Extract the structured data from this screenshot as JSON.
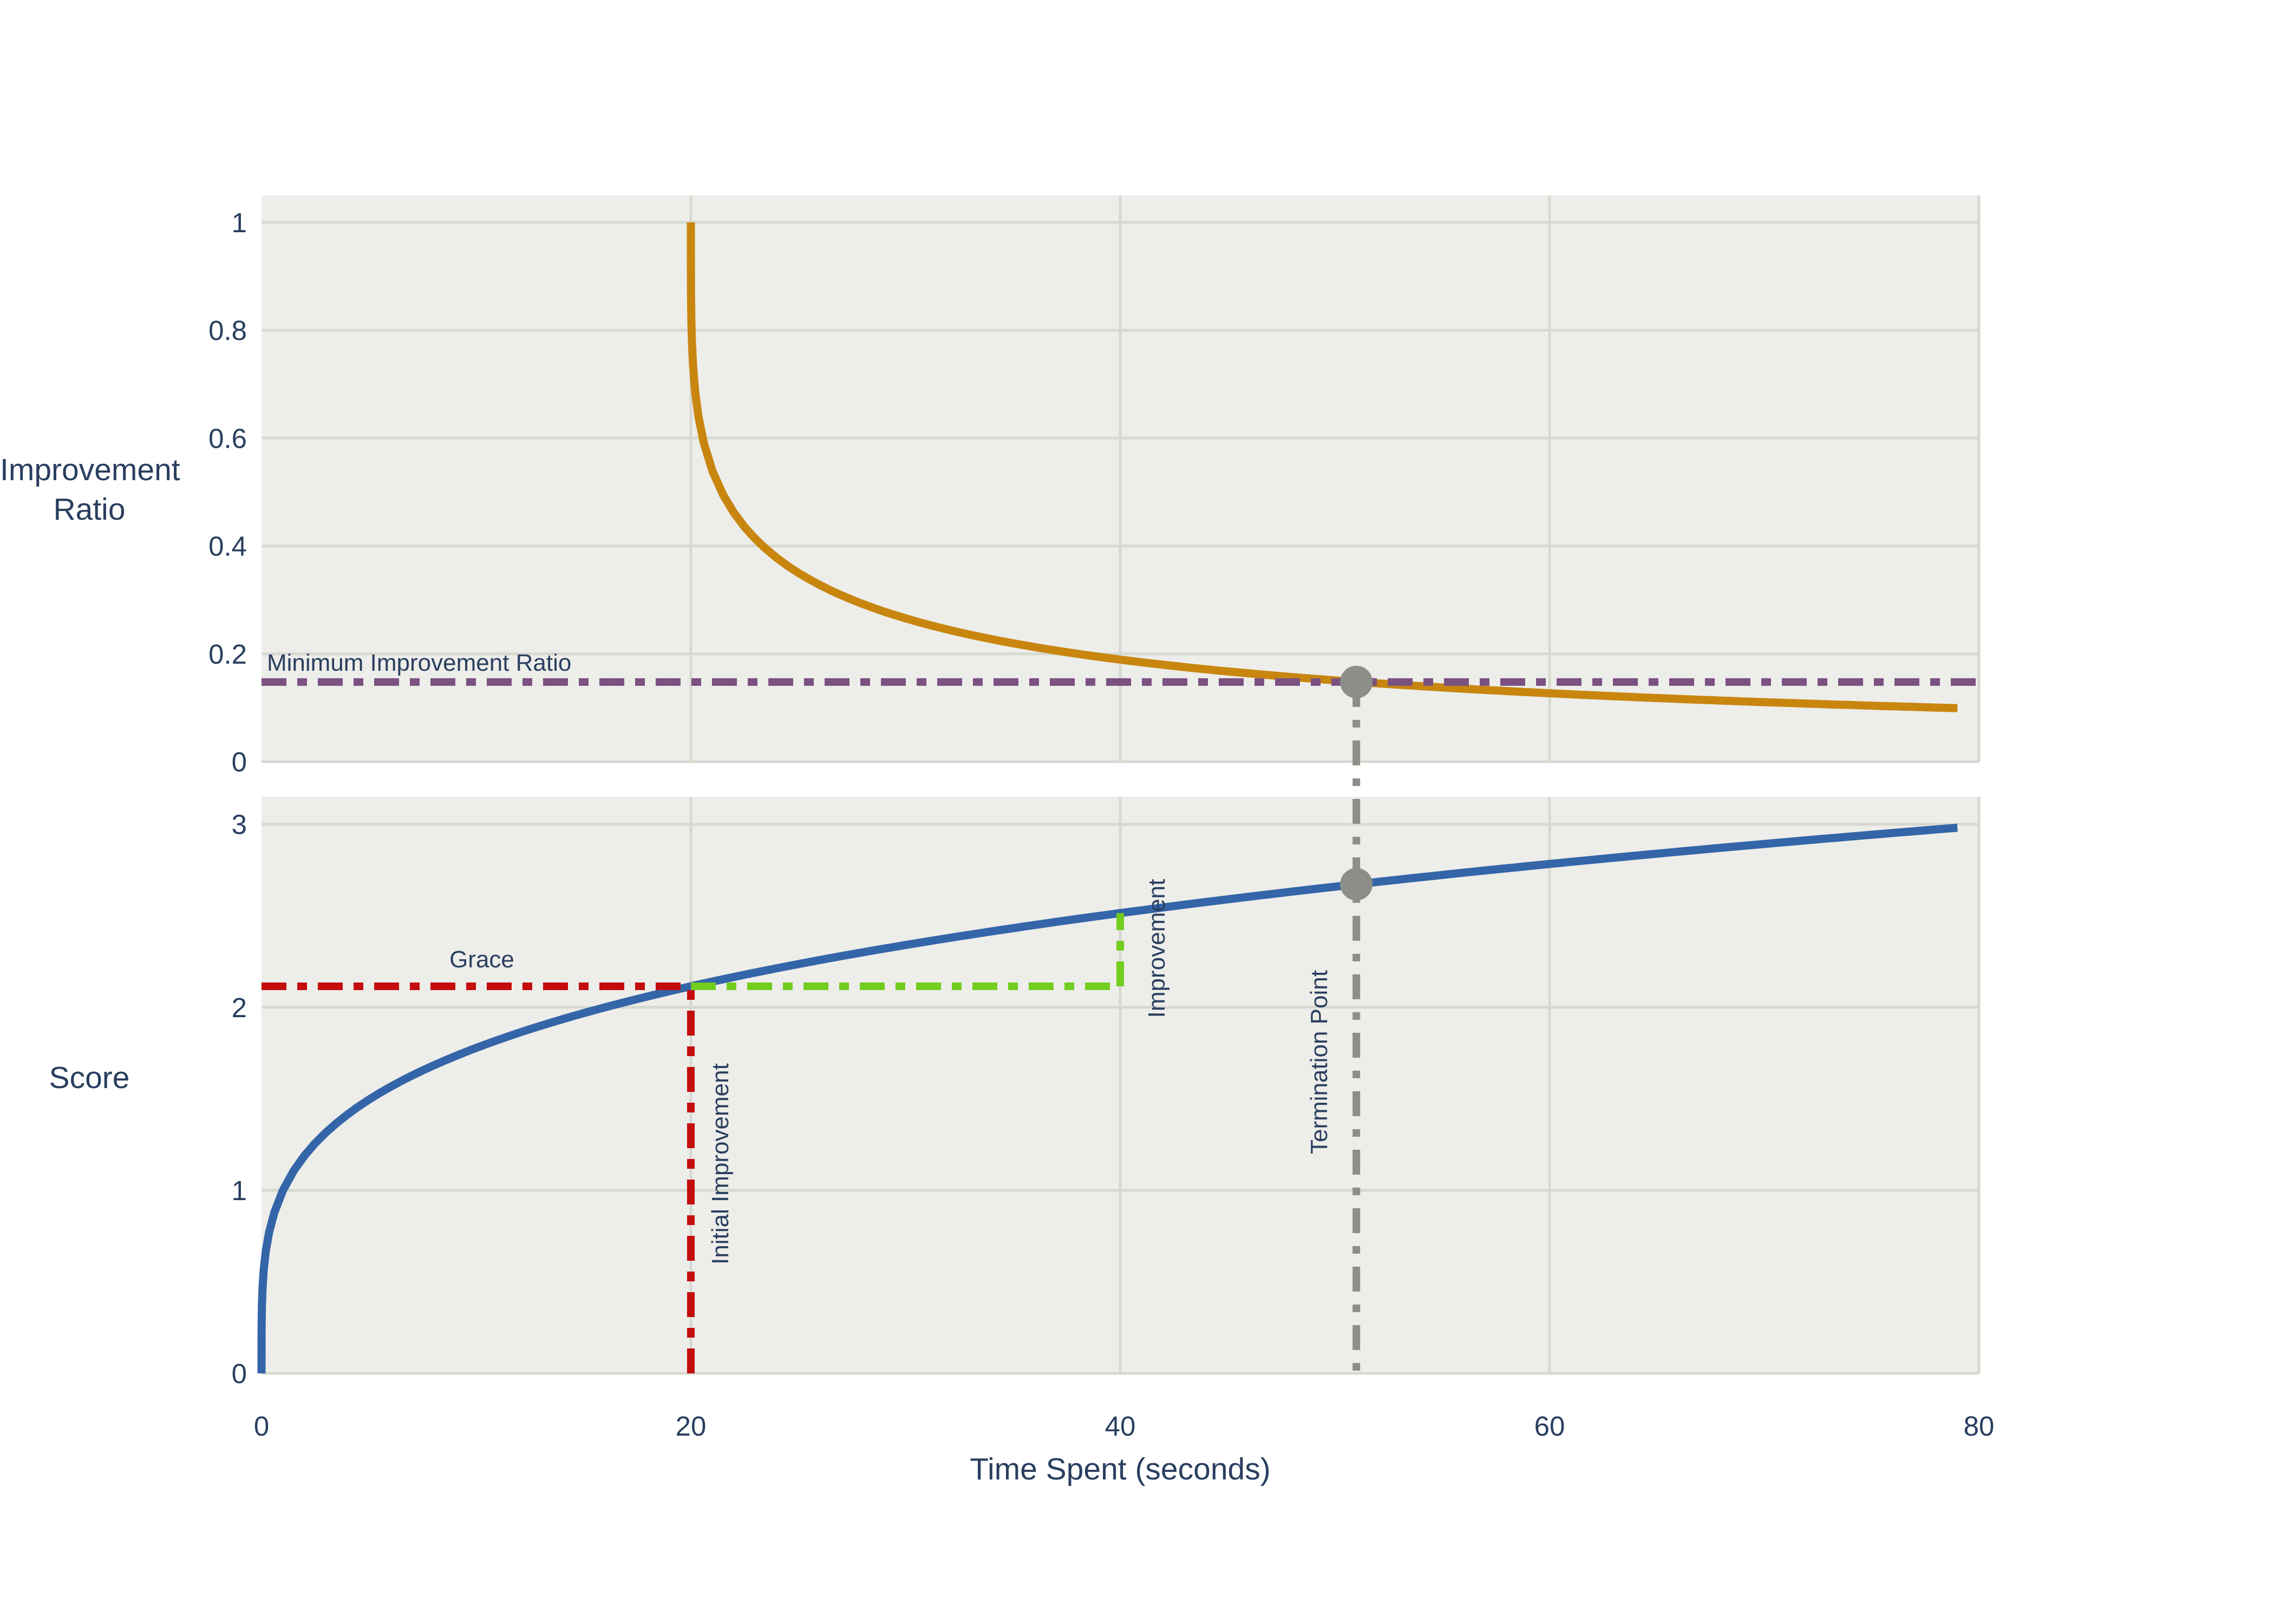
{
  "figure": {
    "background_color": "#ffffff",
    "plot_background_color": "#EDEDEA",
    "gridline_color": "#D6D9D0",
    "text_color": "#2a3f5f"
  },
  "labels": {
    "top_y_axis_title": "Improvement\nRatio",
    "bottom_y_axis_title": "Score",
    "x_axis_title": "Time Spent (seconds)",
    "minimum_improvement_ratio": "Minimum Improvement Ratio",
    "grace": "Grace",
    "initial_improvement": "Initial Improvement",
    "improvement": "Improvement",
    "termination_point": "Termination Point"
  },
  "chart_data": [
    {
      "type": "line",
      "subplot": "top",
      "ylabel": "Improvement Ratio",
      "xlim": [
        0,
        80
      ],
      "ylim": [
        0,
        1.05
      ],
      "yticks": [
        "0",
        "0.2",
        "0.4",
        "0.6",
        "0.8",
        "1"
      ],
      "ytick_values": [
        0,
        0.2,
        0.4,
        0.6,
        0.8,
        1
      ],
      "xgrid_values": [
        20,
        40,
        60,
        80
      ],
      "grid": true,
      "series": [
        {
          "name": "improvement-ratio-curve",
          "color": "#C8860F",
          "style": "solid",
          "formula": "ratio(t) = (score(t) - score(t-20)) / score(20)",
          "t_start": 20,
          "t_end": 79,
          "keypoints": [
            [
              20,
              1.0
            ],
            [
              25,
              0.35
            ],
            [
              30,
              0.266
            ],
            [
              40,
              0.189
            ],
            [
              51,
              0.148
            ],
            [
              60,
              0.127
            ],
            [
              79,
              0.099
            ]
          ]
        },
        {
          "name": "minimum-improvement-ratio-line",
          "color": "#7B5181",
          "style": "dashdot",
          "orientation": "horizontal",
          "value": 0.1477,
          "x_span": [
            0,
            80
          ]
        },
        {
          "name": "termination-vline-top",
          "color": "#8C8E8A",
          "style": "dashdot",
          "orientation": "vertical",
          "value": 51
        }
      ],
      "marker": {
        "x": 51,
        "y": 0.1477,
        "color": "#8C8E8A"
      },
      "annotations": [
        {
          "text": "Minimum Improvement Ratio",
          "near_y": 0.172
        }
      ]
    },
    {
      "type": "line",
      "subplot": "bottom",
      "ylabel": "Score",
      "xlabel": "Time Spent (seconds)",
      "xlim": [
        0,
        80
      ],
      "ylim": [
        0,
        3.15
      ],
      "yticks": [
        "0",
        "1",
        "2",
        "3"
      ],
      "ytick_values": [
        0,
        1,
        2,
        3
      ],
      "xticks": [
        "0",
        "20",
        "40",
        "60",
        "80"
      ],
      "xtick_values": [
        0,
        20,
        40,
        60,
        80
      ],
      "xgrid_values": [
        20,
        40,
        60,
        80
      ],
      "grid": true,
      "series": [
        {
          "name": "score-curve",
          "color": "#3465A8",
          "style": "solid",
          "formula": "score(t) = t^0.25",
          "exponent": 0.25,
          "t_start": 0,
          "t_end": 79,
          "keypoints": [
            [
              0,
              0
            ],
            [
              1,
              1.0
            ],
            [
              10,
              1.778
            ],
            [
              20,
              2.115
            ],
            [
              40,
              2.515
            ],
            [
              51,
              2.673
            ],
            [
              60,
              2.783
            ],
            [
              79,
              2.981
            ]
          ]
        },
        {
          "name": "grace-line",
          "color": "#C40C0C",
          "style": "dashdot",
          "shape": "horizontal-then-down",
          "grace_score": 2.1147,
          "x_span": [
            0,
            20
          ],
          "vertical_at": 20,
          "vertical_span": [
            0,
            2.1147
          ]
        },
        {
          "name": "improvement-line",
          "color": "#72CD1F",
          "style": "dashdot",
          "shape": "horizontal-then-up",
          "x_span": [
            20,
            40
          ],
          "level": 2.1147,
          "vertical_at": 40,
          "vertical_span": [
            2.1147,
            2.5149
          ]
        },
        {
          "name": "termination-vline-bottom",
          "color": "#8C8E8A",
          "style": "dashdot",
          "orientation": "vertical",
          "value": 51
        }
      ],
      "marker": {
        "x": 51,
        "y": 2.6726,
        "color": "#8C8E8A"
      },
      "annotations": [
        {
          "text": "Grace",
          "near_x": 10,
          "near_y": 2.2
        },
        {
          "text": "Initial Improvement",
          "near_x": 21.5,
          "rotated": true
        },
        {
          "text": "Improvement",
          "near_x": 41.5,
          "rotated": true
        },
        {
          "text": "Termination Point",
          "near_x": 49.3,
          "rotated": true
        }
      ],
      "key_values": {
        "initial_improvement_window_seconds": 20,
        "grace_score": 2.115,
        "improvement_20_to_40": 0.4,
        "minimum_improvement_ratio": 0.148,
        "termination_time_seconds": 51,
        "score_at_termination": 2.673
      }
    }
  ]
}
